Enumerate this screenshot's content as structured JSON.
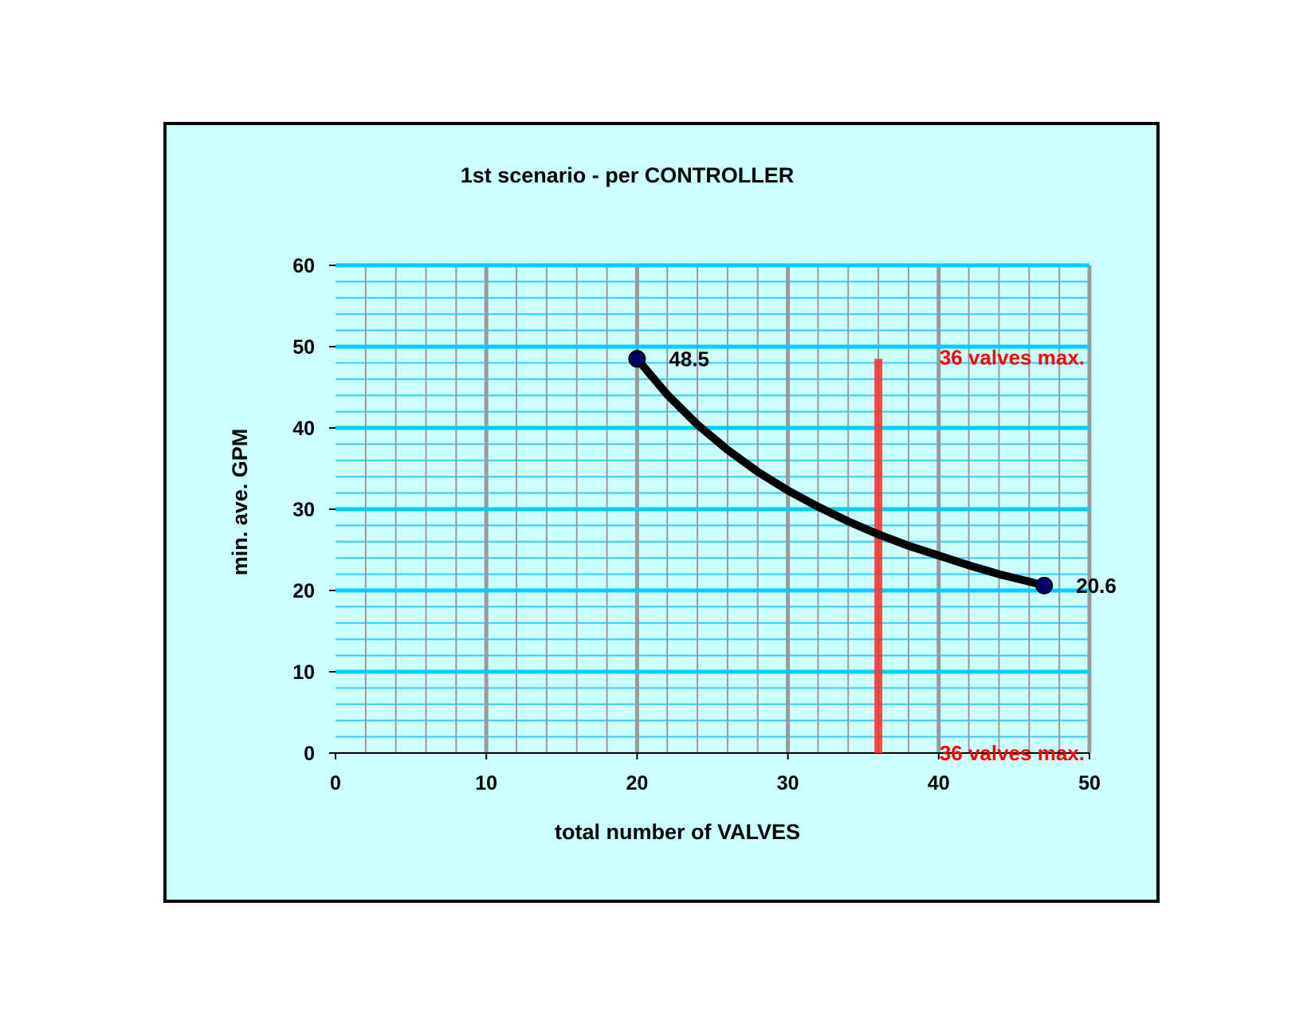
{
  "chart_data": {
    "type": "line",
    "title": "1st scenario - per CONTROLLER",
    "xlabel": "total number of VALVES",
    "ylabel": "min. ave. GPM",
    "xlim": [
      0,
      50
    ],
    "ylim": [
      0,
      60
    ],
    "x_ticks": [
      "0",
      "10",
      "20",
      "30",
      "40",
      "50"
    ],
    "y_ticks": [
      "0",
      "10",
      "20",
      "30",
      "40",
      "50",
      "60"
    ],
    "x_minor_step": 2,
    "y_minor_step": 2,
    "grid": true,
    "legend": "none",
    "series": [
      {
        "x": [
          20,
          22,
          24,
          26,
          28,
          30,
          32,
          34,
          36,
          38,
          40,
          42,
          44,
          46,
          47
        ],
        "y": [
          48.5,
          44.1,
          40.4,
          37.3,
          34.6,
          32.3,
          30.3,
          28.5,
          26.9,
          25.5,
          24.3,
          23.1,
          22.0,
          21.1,
          20.6
        ],
        "markers_at": [
          0,
          14
        ]
      }
    ],
    "data_labels": [
      {
        "x": 20,
        "y": 48.5,
        "text": "48.5"
      },
      {
        "x": 47,
        "y": 20.6,
        "text": "20.6"
      }
    ],
    "reference_line": {
      "x": 36,
      "y_range": [
        0,
        48.5
      ],
      "label_top": "36 valves max.",
      "label_bottom": "36 valves max."
    },
    "colors": {
      "frame_background": "#ccffff",
      "frame_border": "#000000",
      "major_grid_y": "#00ccff",
      "minor_grid_y": "#33ccff",
      "major_grid_x": "#999999",
      "minor_grid_x": "#999999",
      "series_line": "#000000",
      "marker_fill": "#000066",
      "reference_line": "#ff3333",
      "annotation_text": "#ff0000"
    }
  }
}
